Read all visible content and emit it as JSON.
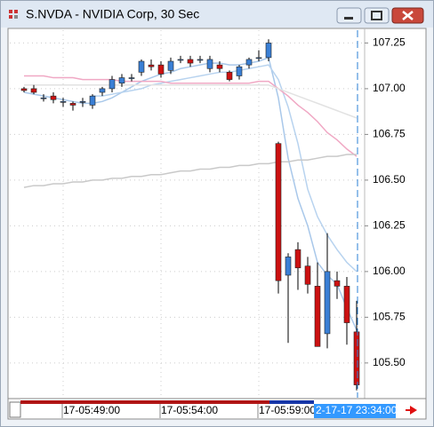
{
  "chart_data": {
    "type": "candlestick",
    "title": "S.NVDA - NVIDIA Corp, 30 Sec",
    "categories": [
      null,
      null,
      null,
      null,
      "17-05:49:00",
      null,
      null,
      null,
      null,
      null,
      null,
      null,
      null,
      null,
      "17-05:54:00",
      null,
      null,
      null,
      null,
      null,
      null,
      null,
      null,
      null,
      "17-05:59:00",
      null,
      null,
      null,
      null,
      null,
      null,
      null,
      null,
      null,
      null
    ],
    "open": [
      107.0,
      107.0,
      106.95,
      106.96,
      106.93,
      106.92,
      106.93,
      106.91,
      106.98,
      107.0,
      107.03,
      107.06,
      107.09,
      107.13,
      107.13,
      107.1,
      107.16,
      107.16,
      107.16,
      107.11,
      107.13,
      107.09,
      107.07,
      107.13,
      107.17,
      107.17,
      106.7,
      105.98,
      106.12,
      106.03,
      105.92,
      105.66,
      105.95,
      105.92,
      105.67
    ],
    "high": [
      107.01,
      107.02,
      106.97,
      106.98,
      106.95,
      106.93,
      106.95,
      106.97,
      107.01,
      107.07,
      107.08,
      107.08,
      107.16,
      107.16,
      107.15,
      107.17,
      107.18,
      107.18,
      107.18,
      107.18,
      107.15,
      107.1,
      107.13,
      107.17,
      107.21,
      107.27,
      106.71,
      106.1,
      106.16,
      106.08,
      106.05,
      106.21,
      106.0,
      105.97,
      105.84
    ],
    "low": [
      106.98,
      106.97,
      106.93,
      106.92,
      106.9,
      106.88,
      106.9,
      106.89,
      106.96,
      106.98,
      107.01,
      107.04,
      107.07,
      107.1,
      107.06,
      107.08,
      107.14,
      107.12,
      107.14,
      107.09,
      107.09,
      107.04,
      107.05,
      107.11,
      107.15,
      107.15,
      105.88,
      105.61,
      105.9,
      105.88,
      105.59,
      105.58,
      105.85,
      105.6,
      105.35
    ],
    "close": [
      106.99,
      106.98,
      106.95,
      106.94,
      106.93,
      106.91,
      106.93,
      106.96,
      107.0,
      107.05,
      107.06,
      107.06,
      107.15,
      107.12,
      107.08,
      107.15,
      107.16,
      107.14,
      107.16,
      107.16,
      107.11,
      107.05,
      107.12,
      107.16,
      107.17,
      107.25,
      105.95,
      106.08,
      106.02,
      105.93,
      105.59,
      106.0,
      105.92,
      105.72,
      105.38
    ],
    "up_color": "#3a7fd5",
    "down_color": "#cc1111",
    "lines": [
      {
        "color": "#a9c8ea",
        "values": [
          106.98,
          106.97,
          106.96,
          106.95,
          106.94,
          106.93,
          106.92,
          106.92,
          106.93,
          106.95,
          106.98,
          107.01,
          107.04,
          107.06,
          107.08,
          107.09,
          107.11,
          107.12,
          107.13,
          107.14,
          107.14,
          107.13,
          107.13,
          107.14,
          107.15,
          107.17,
          106.95,
          106.62,
          106.4,
          106.25,
          106.05,
          105.98,
          105.93,
          105.8,
          105.68
        ]
      },
      {
        "color": "#b8d3ef",
        "values": [
          null,
          null,
          null,
          null,
          null,
          null,
          null,
          106.96,
          106.96,
          106.97,
          106.98,
          106.99,
          107.0,
          107.02,
          107.03,
          107.04,
          107.05,
          107.06,
          107.07,
          107.08,
          107.09,
          107.09,
          107.1,
          107.11,
          107.12,
          107.13,
          107.05,
          106.9,
          106.7,
          106.45,
          106.3,
          106.2,
          106.12,
          106.05,
          106.0
        ]
      },
      {
        "color": "#f0a8c4",
        "values": [
          107.07,
          107.07,
          107.07,
          107.06,
          107.06,
          107.06,
          107.05,
          107.05,
          107.05,
          107.05,
          107.04,
          107.04,
          107.04,
          107.04,
          107.04,
          107.03,
          107.03,
          107.03,
          107.03,
          107.03,
          107.03,
          107.03,
          107.03,
          107.03,
          107.04,
          107.04,
          107.0,
          106.96,
          106.91,
          106.87,
          106.82,
          106.76,
          106.72,
          106.67,
          106.63
        ]
      },
      {
        "color": "#e2e2e2",
        "values": [
          107.02,
          107.02,
          107.02,
          107.02,
          107.02,
          107.02,
          107.02,
          107.02,
          107.02,
          107.02,
          107.02,
          107.02,
          107.02,
          107.02,
          107.02,
          107.02,
          107.02,
          107.02,
          107.02,
          107.02,
          107.02,
          107.02,
          107.02,
          107.02,
          107.02,
          107.02,
          107.0,
          106.98,
          106.96,
          106.94,
          106.92,
          106.9,
          106.88,
          106.86,
          106.84
        ]
      },
      {
        "color": "#c9c9c9",
        "values": [
          106.46,
          106.47,
          106.47,
          106.48,
          106.48,
          106.49,
          106.49,
          106.5,
          106.5,
          106.51,
          106.51,
          106.52,
          106.52,
          106.53,
          106.53,
          106.54,
          106.55,
          106.55,
          106.56,
          106.56,
          106.57,
          106.57,
          106.58,
          106.58,
          106.59,
          106.59,
          106.6,
          106.6,
          106.61,
          106.61,
          106.62,
          106.63,
          106.63,
          106.64,
          106.64
        ]
      }
    ],
    "ylim": [
      105.31,
      107.32
    ],
    "yticks": [
      107.25,
      {
        "value": 107,
        "label": "107.00"
      },
      106.75,
      {
        "value": 106.5,
        "label": "106.50"
      },
      106.25,
      {
        "value": 106,
        "label": "106.00"
      },
      105.75,
      {
        "value": 105.5,
        "label": "105.50"
      }
    ],
    "grid": true,
    "cursor_label": "2-17-17 23:34:00"
  }
}
